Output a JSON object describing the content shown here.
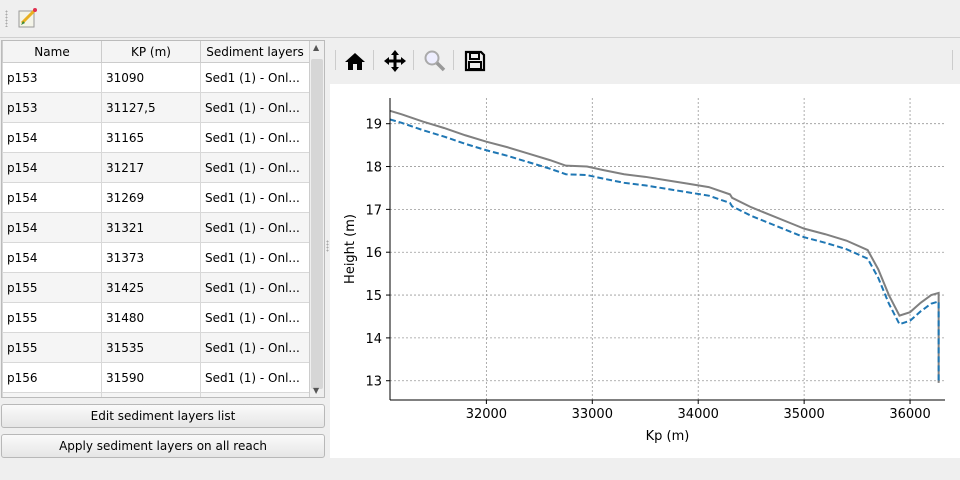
{
  "toolbar": {
    "edit_icon": "edit-document-icon"
  },
  "table": {
    "headers": [
      "Name",
      "KP (m)",
      "Sediment layers"
    ],
    "rows": [
      [
        "p153",
        "31090",
        "Sed1 (1) - Onl..."
      ],
      [
        "p153",
        "31127,5",
        "Sed1 (1) - Onl..."
      ],
      [
        "p154",
        "31165",
        "Sed1 (1) - Onl..."
      ],
      [
        "p154",
        "31217",
        "Sed1 (1) - Onl..."
      ],
      [
        "p154",
        "31269",
        "Sed1 (1) - Onl..."
      ],
      [
        "p154",
        "31321",
        "Sed1 (1) - Onl..."
      ],
      [
        "p154",
        "31373",
        "Sed1 (1) - Onl..."
      ],
      [
        "p155",
        "31425",
        "Sed1 (1) - Onl..."
      ],
      [
        "p155",
        "31480",
        "Sed1 (1) - Onl..."
      ],
      [
        "p155",
        "31535",
        "Sed1 (1) - Onl..."
      ],
      [
        "p156",
        "31590",
        "Sed1 (1) - Onl..."
      ],
      [
        "",
        "",
        ""
      ]
    ]
  },
  "buttons": {
    "edit": "Edit sediment layers list",
    "apply": "Apply sediment layers on all reach"
  },
  "plot_toolbar": {
    "icons": [
      "home-icon",
      "pan-icon",
      "zoom-icon",
      "save-icon"
    ]
  },
  "chart_data": {
    "type": "line",
    "xlabel": "Kp (m)",
    "ylabel": "Height (m)",
    "xlim": [
      31090,
      36330
    ],
    "ylim": [
      12.55,
      19.6
    ],
    "xticks": [
      32000,
      33000,
      34000,
      35000,
      36000
    ],
    "yticks": [
      13,
      14,
      15,
      16,
      17,
      18,
      19
    ],
    "grid": true,
    "series": [
      {
        "color": "#808080",
        "style": "solid",
        "x": [
          31090,
          31200,
          31400,
          31600,
          31800,
          32000,
          32200,
          32400,
          32600,
          32750,
          32950,
          33100,
          33300,
          33500,
          33700,
          33900,
          34100,
          34300,
          34320,
          34500,
          34700,
          34900,
          35000,
          35200,
          35400,
          35600,
          35700,
          35800,
          35900,
          36000,
          36100,
          36200,
          36270,
          36270
        ],
        "y": [
          19.3,
          19.22,
          19.05,
          18.9,
          18.73,
          18.58,
          18.45,
          18.3,
          18.15,
          18.02,
          18.0,
          17.92,
          17.82,
          17.76,
          17.68,
          17.6,
          17.52,
          17.35,
          17.27,
          17.05,
          16.85,
          16.65,
          16.55,
          16.42,
          16.27,
          16.05,
          15.6,
          15.0,
          14.52,
          14.6,
          14.82,
          15.0,
          15.05,
          12.95
        ]
      },
      {
        "color": "#1f77b4",
        "style": "dashed",
        "x": [
          31090,
          31200,
          31400,
          31600,
          31800,
          32000,
          32200,
          32400,
          32600,
          32750,
          32950,
          33100,
          33300,
          33500,
          33700,
          33900,
          34100,
          34300,
          34320,
          34500,
          34700,
          34900,
          35000,
          35200,
          35400,
          35600,
          35700,
          35800,
          35900,
          36000,
          36100,
          36200,
          36270,
          36270
        ],
        "y": [
          19.1,
          19.02,
          18.85,
          18.7,
          18.53,
          18.38,
          18.25,
          18.1,
          17.95,
          17.82,
          17.8,
          17.72,
          17.62,
          17.56,
          17.48,
          17.4,
          17.32,
          17.15,
          17.07,
          16.85,
          16.65,
          16.45,
          16.35,
          16.22,
          16.07,
          15.85,
          15.4,
          14.8,
          14.32,
          14.4,
          14.62,
          14.8,
          14.85,
          12.95
        ]
      }
    ]
  }
}
